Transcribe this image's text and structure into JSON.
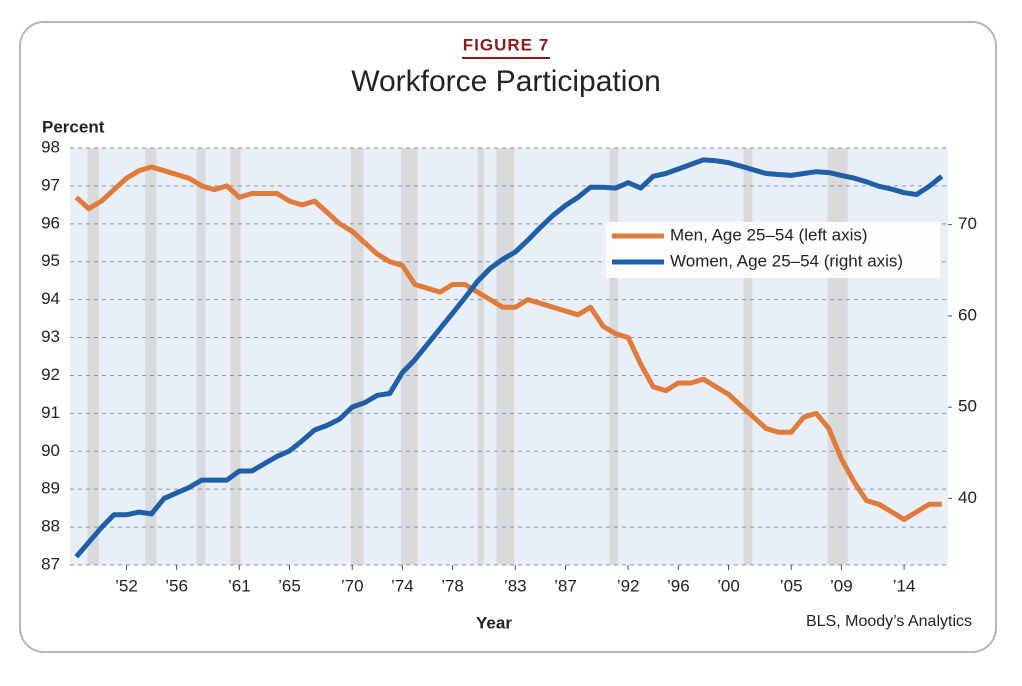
{
  "chart_data": {
    "type": "line",
    "figure_label": "FIGURE 7",
    "title": "Workforce Participation",
    "ylabel": "Percent",
    "xlabel": "Year",
    "source": "BLS, Moody’s Analytics",
    "x": [
      1948,
      1949,
      1950,
      1951,
      1952,
      1953,
      1954,
      1955,
      1956,
      1957,
      1958,
      1959,
      1960,
      1961,
      1962,
      1963,
      1964,
      1965,
      1966,
      1967,
      1968,
      1969,
      1970,
      1971,
      1972,
      1973,
      1974,
      1975,
      1976,
      1977,
      1978,
      1979,
      1980,
      1981,
      1982,
      1983,
      1984,
      1985,
      1986,
      1987,
      1988,
      1989,
      1990,
      1991,
      1992,
      1993,
      1994,
      1995,
      1996,
      1997,
      1998,
      1999,
      2000,
      2001,
      2002,
      2003,
      2004,
      2005,
      2006,
      2007,
      2008,
      2009,
      2010,
      2011,
      2012,
      2013,
      2014,
      2015,
      2016,
      2017
    ],
    "series": [
      {
        "name": "Men, Age 25–54 (left axis)",
        "color": "#e07b39",
        "axis": "y",
        "values": [
          96.7,
          96.4,
          96.6,
          96.9,
          97.2,
          97.4,
          97.5,
          97.4,
          97.3,
          97.2,
          97.0,
          96.9,
          97.0,
          96.7,
          96.8,
          96.8,
          96.8,
          96.6,
          96.5,
          96.6,
          96.3,
          96.0,
          95.8,
          95.5,
          95.2,
          95.0,
          94.9,
          94.4,
          94.3,
          94.2,
          94.4,
          94.4,
          94.2,
          94.0,
          93.8,
          93.8,
          94.0,
          93.9,
          93.8,
          93.7,
          93.6,
          93.8,
          93.3,
          93.1,
          93.0,
          92.3,
          91.7,
          91.6,
          91.8,
          91.8,
          91.9,
          91.7,
          91.5,
          91.2,
          90.9,
          90.6,
          90.5,
          90.5,
          90.9,
          91.0,
          90.6,
          89.8,
          89.2,
          88.7,
          88.6,
          88.4,
          88.2,
          88.4,
          88.6,
          88.6
        ]
      },
      {
        "name": "Women, Age 25–54 (right axis)",
        "color": "#1f5fa8",
        "axis": "y2",
        "values": [
          33.6,
          35.2,
          36.8,
          38.2,
          38.2,
          38.5,
          38.3,
          40.0,
          40.6,
          41.2,
          42.0,
          42.0,
          42.0,
          43.0,
          43.0,
          43.8,
          44.6,
          45.2,
          46.3,
          47.5,
          48.0,
          48.7,
          50.0,
          50.5,
          51.3,
          51.5,
          53.8,
          55.2,
          56.9,
          58.6,
          60.3,
          62.0,
          63.8,
          65.2,
          66.2,
          67.0,
          68.3,
          69.7,
          71.0,
          72.1,
          73.0,
          74.1,
          74.1,
          74.0,
          74.6,
          74.0,
          75.3,
          75.6,
          76.1,
          76.6,
          77.1,
          77.0,
          76.8,
          76.4,
          76.0,
          75.6,
          75.5,
          75.4,
          75.6,
          75.8,
          75.7,
          75.4,
          75.1,
          74.7,
          74.2,
          73.9,
          73.5,
          73.3,
          74.2,
          75.3
        ]
      }
    ],
    "shaded_periods": [
      [
        1948.9,
        1949.8
      ],
      [
        1953.5,
        1954.4
      ],
      [
        1957.6,
        1958.3
      ],
      [
        1960.3,
        1961.1
      ],
      [
        1969.9,
        1970.9
      ],
      [
        1973.9,
        1975.2
      ],
      [
        1980.0,
        1980.5
      ],
      [
        1981.5,
        1982.9
      ],
      [
        1990.5,
        1991.2
      ],
      [
        2001.2,
        2001.9
      ],
      [
        2007.9,
        2009.5
      ]
    ],
    "xlim": [
      1947.5,
      2017.5
    ],
    "xticks": [
      {
        "value": 1952,
        "label": "’52"
      },
      {
        "value": 1956,
        "label": "’56"
      },
      {
        "value": 1961,
        "label": "’61"
      },
      {
        "value": 1965,
        "label": "’65"
      },
      {
        "value": 1970,
        "label": "’70"
      },
      {
        "value": 1974,
        "label": "’74"
      },
      {
        "value": 1978,
        "label": "’78"
      },
      {
        "value": 1983,
        "label": "’83"
      },
      {
        "value": 1987,
        "label": "’87"
      },
      {
        "value": 1992,
        "label": "’92"
      },
      {
        "value": 1996,
        "label": "’96"
      },
      {
        "value": 2000,
        "label": "’00"
      },
      {
        "value": 2005,
        "label": "’05"
      },
      {
        "value": 2009,
        "label": "’09"
      },
      {
        "value": 2014,
        "label": "’14"
      }
    ],
    "ylim": [
      87,
      98
    ],
    "yticks": [
      87,
      88,
      89,
      90,
      91,
      92,
      93,
      94,
      95,
      96,
      97,
      98
    ],
    "y2lim": [
      32.7,
      78.4
    ],
    "y2ticks": [
      40,
      50,
      60,
      70
    ],
    "grid": true,
    "legend": "upper right"
  }
}
